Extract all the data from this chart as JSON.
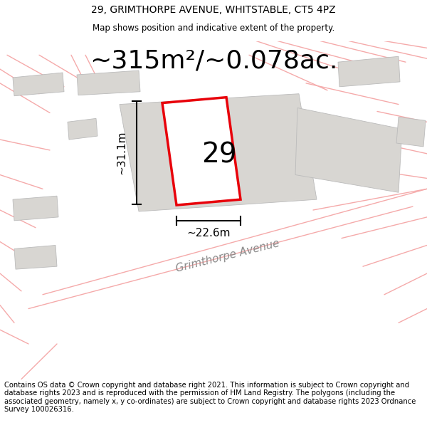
{
  "title_line1": "29, GRIMTHORPE AVENUE, WHITSTABLE, CT5 4PZ",
  "title_line2": "Map shows position and indicative extent of the property.",
  "area_text": "~315m²/~0.078ac.",
  "property_number": "29",
  "dim_height": "~31.1m",
  "dim_width": "~22.6m",
  "street_name": "Grimthorpe Avenue",
  "footer_text": "Contains OS data © Crown copyright and database right 2021. This information is subject to Crown copyright and database rights 2023 and is reproduced with the permission of HM Land Registry. The polygons (including the associated geometry, namely x, y co-ordinates) are subject to Crown copyright and database rights 2023 Ordnance Survey 100026316.",
  "bg_color": "#ffffff",
  "map_bg": "#f0eeeb",
  "plot_color": "#e8000a",
  "plot_fill": "#ffffff",
  "building_color": "#d8d6d2",
  "building_edge": "#bbbbbb",
  "road_line_color": "#f5aaaa",
  "title_fontsize": 10,
  "subtitle_fontsize": 8.5,
  "area_fontsize": 26,
  "prop_num_fontsize": 28,
  "dim_fontsize": 11,
  "street_fontsize": 11
}
